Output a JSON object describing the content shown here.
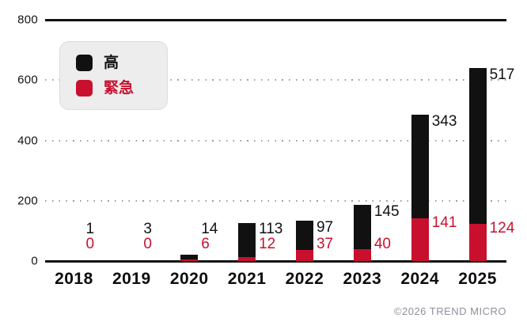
{
  "chart_data": {
    "type": "bar",
    "stacked": true,
    "categories": [
      "2018",
      "2019",
      "2020",
      "2021",
      "2022",
      "2023",
      "2024",
      "2025"
    ],
    "series": [
      {
        "name": "高",
        "color": "#111111",
        "values": [
          1,
          3,
          14,
          113,
          97,
          145,
          343,
          517
        ]
      },
      {
        "name": "緊急",
        "color": "#c8102e",
        "values": [
          0,
          0,
          6,
          12,
          37,
          40,
          141,
          124
        ]
      }
    ],
    "stack_order_bottom_to_top": [
      "緊急",
      "高"
    ],
    "title": "",
    "xlabel": "",
    "ylabel": "",
    "ylim": [
      0,
      800
    ],
    "yticks": [
      0,
      200,
      400,
      600,
      800
    ],
    "grid": "dotted-horizontal",
    "legend_position": "top-left",
    "value_labels": "per-bar: high count in black, urgent count in red, right of bar"
  },
  "footer": {
    "copyright": "©2026 TREND MICRO"
  }
}
